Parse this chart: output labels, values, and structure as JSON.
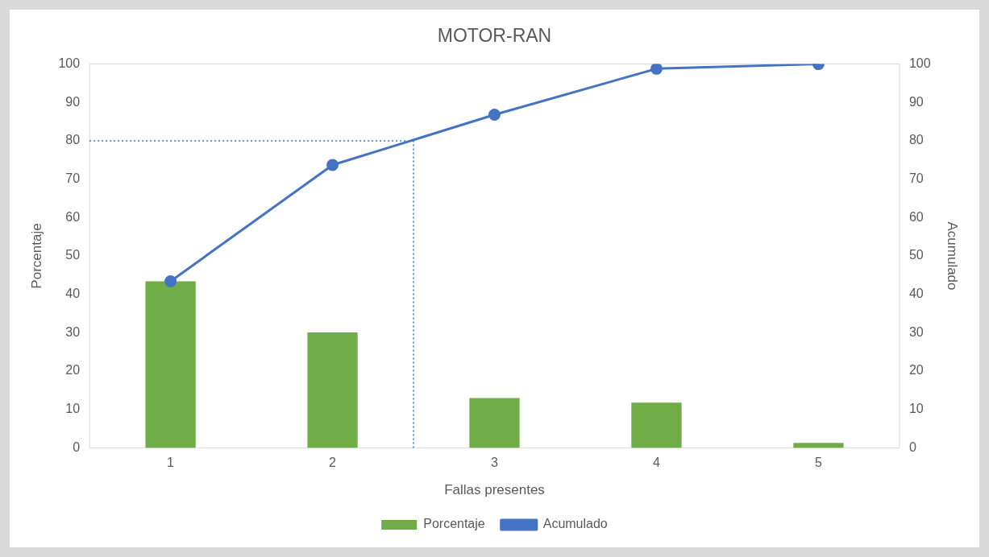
{
  "chart_data": {
    "type": "bar",
    "title": "MOTOR-RAN",
    "xlabel": "Fallas presentes",
    "ylabel": "Porcentaje",
    "y2label": "Acumulado",
    "x": [
      1,
      2,
      3,
      4,
      5
    ],
    "xlim": [
      0.5,
      5.5
    ],
    "xticks": [
      1,
      2,
      3,
      4,
      5
    ],
    "series": [
      {
        "name": "Porcentaje",
        "color": "#70ad47",
        "values": [
          43.4,
          30.1,
          13.0,
          11.8,
          1.3
        ]
      },
      {
        "name": "Acumulado",
        "type": "line",
        "axis": "y2",
        "color": "#4472c4",
        "marker": "circle",
        "values": [
          43.4,
          73.7,
          86.8,
          98.8,
          100
        ]
      }
    ],
    "ylim": [
      0,
      100
    ],
    "yticks": [
      0,
      10,
      20,
      30,
      40,
      50,
      60,
      70,
      80,
      90,
      100
    ],
    "y2lim": [
      0,
      100
    ],
    "y2ticks": [
      0,
      10,
      20,
      30,
      40,
      50,
      60,
      70,
      80,
      90,
      100
    ],
    "ref_lines": [
      {
        "axis": "y",
        "value": 80,
        "color": "#5b9bd5",
        "line_style": "dotted"
      },
      {
        "axis": "x",
        "value": 2.5,
        "color": "#5b9bd5",
        "line_style": "dotted"
      }
    ],
    "grid": false,
    "legend": "bottom"
  }
}
